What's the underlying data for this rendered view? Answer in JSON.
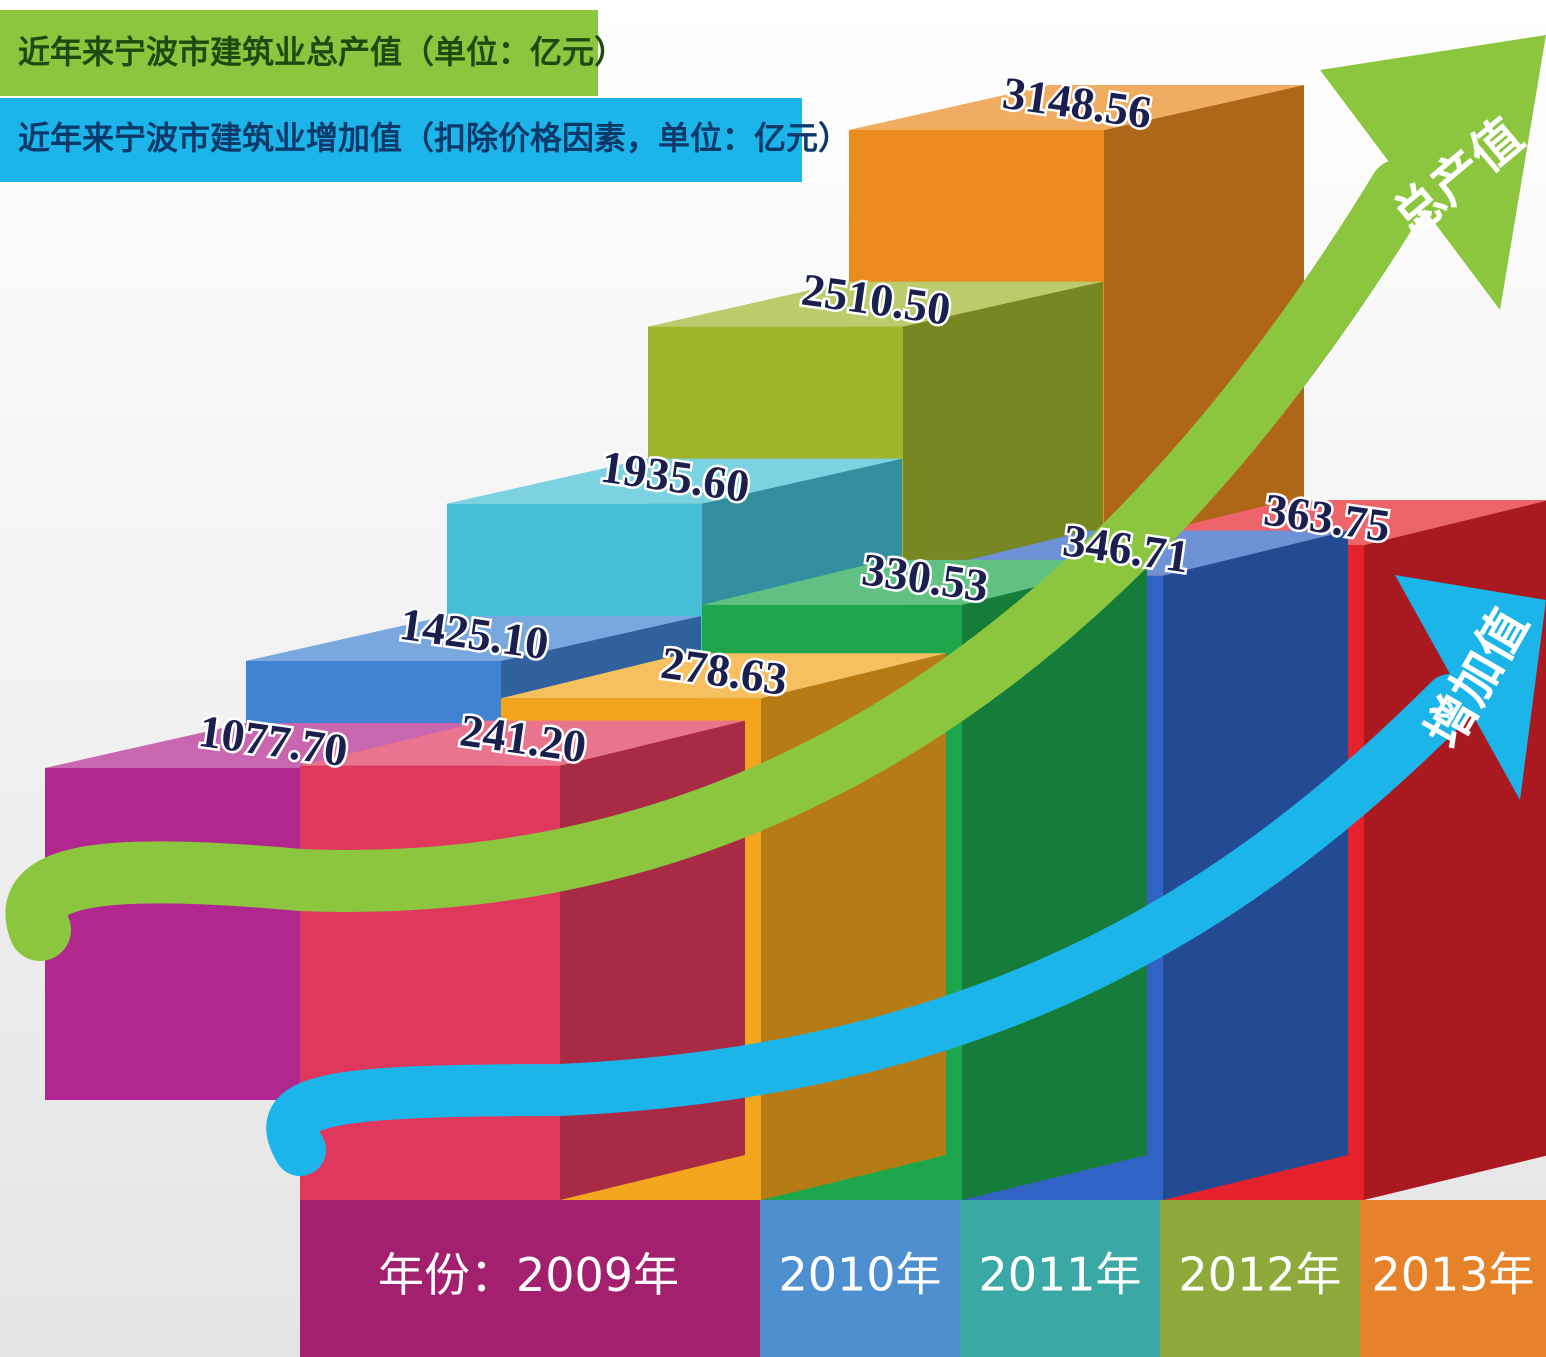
{
  "chart_data": {
    "type": "bar3d",
    "x_label": "年份：",
    "categories": [
      "2009年",
      "2010年",
      "2011年",
      "2012年",
      "2013年"
    ],
    "series": [
      {
        "name": "近年来宁波市建筑业总产值（单位：亿元）",
        "color": "#8cc63f",
        "arrow_label": "总产值",
        "colors": [
          "#b1268f",
          "#3f83d2",
          "#45bfd6",
          "#9fb52c",
          "#ea8a1f"
        ],
        "values": [
          1077.7,
          1425.1,
          1935.6,
          2510.5,
          3148.56
        ],
        "value_labels": [
          "1077.70",
          "1425.10",
          "1935.60",
          "2510.50",
          "3148.56"
        ]
      },
      {
        "name": "近年来宁波市建筑业增加值（扣除价格因素，单位：亿元）",
        "color": "#1cb5ea",
        "arrow_label": "增加值",
        "colors": [
          "#e0385c",
          "#f3a51d",
          "#1ea64c",
          "#3163c4",
          "#e5222b"
        ],
        "values": [
          241.2,
          278.63,
          330.53,
          346.71,
          363.75
        ],
        "value_labels": [
          "241.20",
          "278.63",
          "330.53",
          "346.71",
          "363.75"
        ]
      }
    ]
  }
}
